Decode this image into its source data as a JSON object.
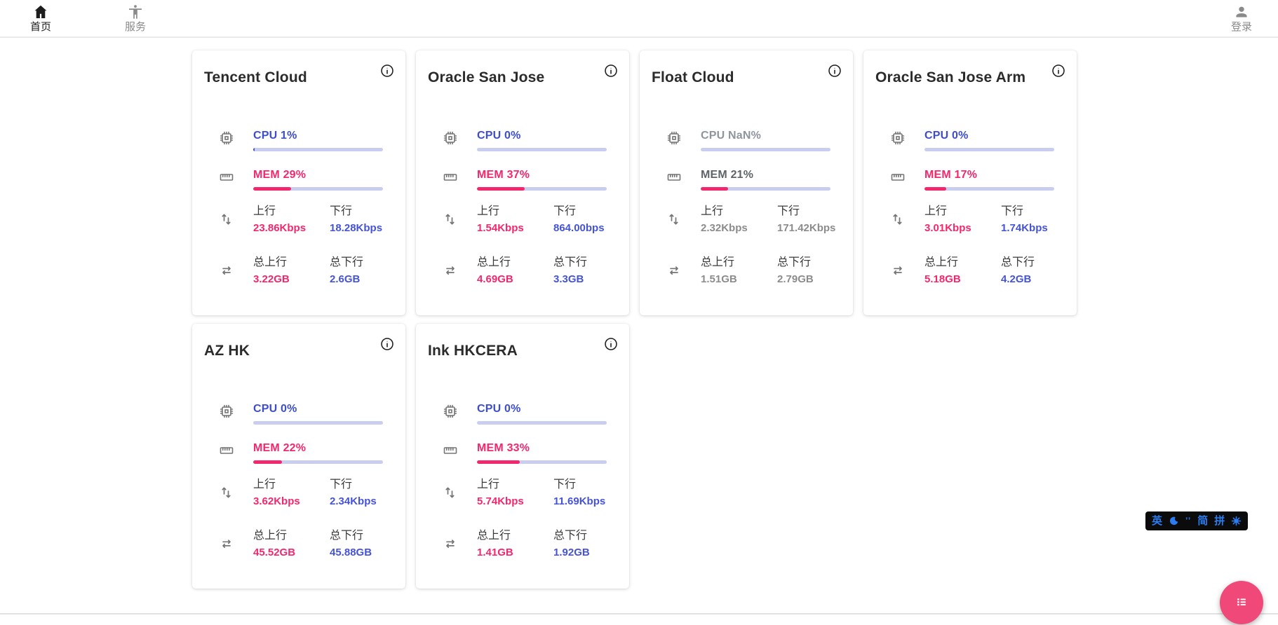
{
  "nav": {
    "items": [
      {
        "label": "首页",
        "icon": "home-icon",
        "active": true
      },
      {
        "label": "服务",
        "icon": "accessibility-icon",
        "active": false
      }
    ],
    "login": {
      "label": "登录",
      "icon": "person-icon"
    }
  },
  "labels": {
    "up": "上行",
    "down": "下行",
    "total_up": "总上行",
    "total_down": "总下行"
  },
  "colors": {
    "accent_blue": "#3c4ecd",
    "accent_pink": "#f3276e",
    "bar_track": "#c9cdf0",
    "bar_blue_fill": "#3d50d8",
    "bar_pink_fill": "#f3276e",
    "fab_pink": "#f1487a",
    "ime_blue": "#2b7cf0",
    "inactive_gray": "#8c8c8c"
  },
  "cards": [
    {
      "title": "Tencent Cloud",
      "cpu_label": "CPU 1%",
      "cpu_pct": 1,
      "mem_label": "MEM 29%",
      "mem_pct": 29,
      "up": "23.86Kbps",
      "down": "18.28Kbps",
      "total_up": "3.22GB",
      "total_down": "2.6GB",
      "state": "online"
    },
    {
      "title": "Oracle San Jose",
      "cpu_label": "CPU 0%",
      "cpu_pct": 0,
      "mem_label": "MEM 37%",
      "mem_pct": 37,
      "up": "1.54Kbps",
      "down": "864.00bps",
      "total_up": "4.69GB",
      "total_down": "3.3GB",
      "state": "online"
    },
    {
      "title": "Float Cloud",
      "cpu_label": "CPU NaN%",
      "cpu_pct": 0,
      "mem_label": "MEM 21%",
      "mem_pct": 21,
      "up": "2.32Kbps",
      "down": "171.42Kbps",
      "total_up": "1.51GB",
      "total_down": "2.79GB",
      "state": "offline"
    },
    {
      "title": "Oracle San Jose Arm",
      "cpu_label": "CPU 0%",
      "cpu_pct": 0,
      "mem_label": "MEM 17%",
      "mem_pct": 17,
      "up": "3.01Kbps",
      "down": "1.74Kbps",
      "total_up": "5.18GB",
      "total_down": "4.2GB",
      "state": "online"
    },
    {
      "title": "AZ HK",
      "cpu_label": "CPU 0%",
      "cpu_pct": 0,
      "mem_label": "MEM 22%",
      "mem_pct": 22,
      "up": "3.62Kbps",
      "down": "2.34Kbps",
      "total_up": "45.52GB",
      "total_down": "45.88GB",
      "state": "online"
    },
    {
      "title": "Ink HKCERA",
      "cpu_label": "CPU 0%",
      "cpu_pct": 0,
      "mem_label": "MEM 33%",
      "mem_pct": 33,
      "up": "5.74Kbps",
      "down": "11.69Kbps",
      "total_up": "1.41GB",
      "total_down": "1.92GB",
      "state": "online"
    }
  ],
  "ime_bar": {
    "items": [
      {
        "type": "text",
        "value": "英"
      },
      {
        "type": "icon",
        "name": "moon-icon"
      },
      {
        "type": "text",
        "value": "’’",
        "small": true
      },
      {
        "type": "text",
        "value": "简"
      },
      {
        "type": "text",
        "value": "拼"
      },
      {
        "type": "icon",
        "name": "gear-icon"
      }
    ]
  },
  "fab": {
    "icon": "list-icon"
  }
}
